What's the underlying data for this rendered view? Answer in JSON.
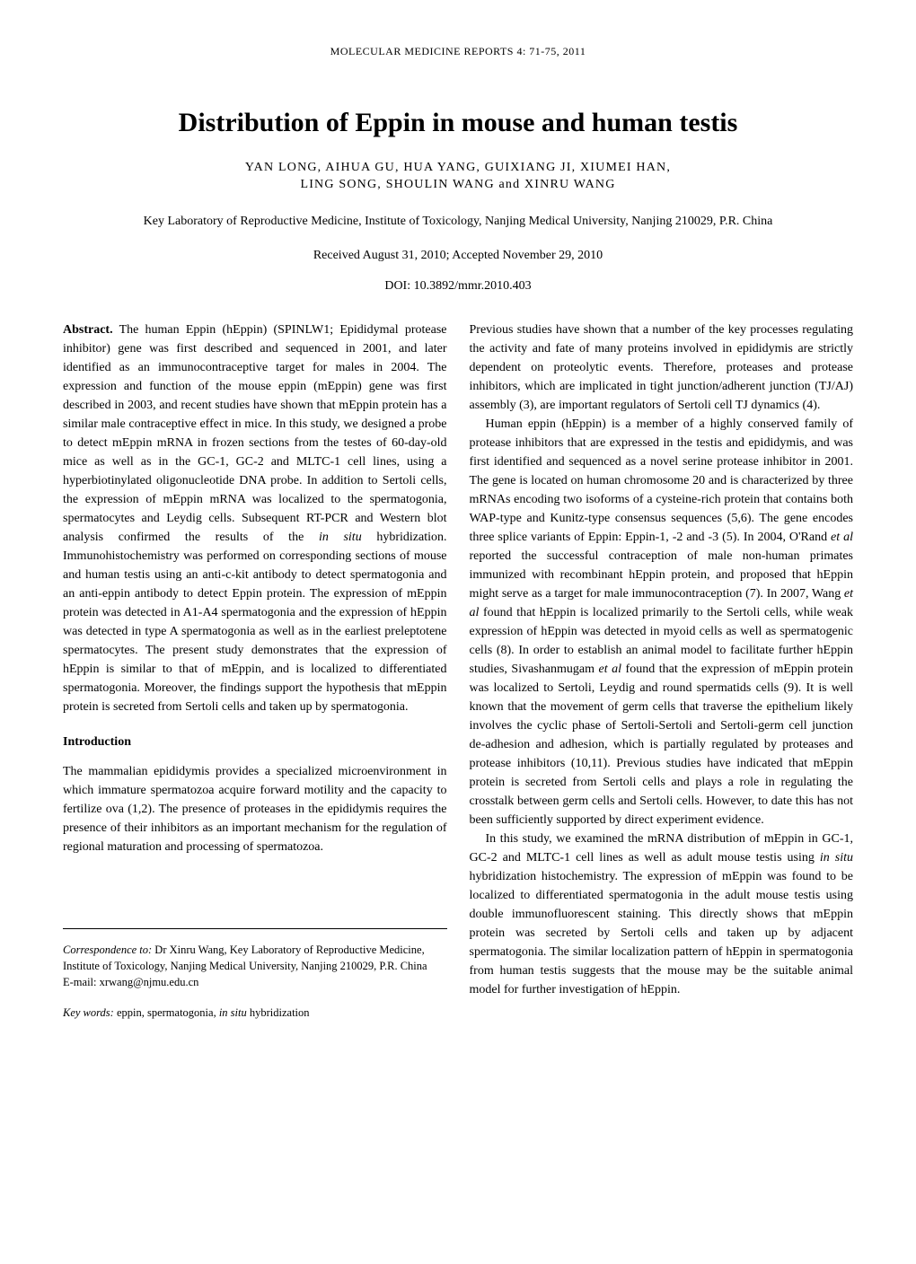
{
  "journal_header": "MOLECULAR MEDICINE REPORTS 4: 71-75, 2011",
  "title": "Distribution of Eppin in mouse and human testis",
  "authors_line1": "YAN LONG,  AIHUA GU,  HUA YANG,  GUIXIANG JI,  XIUMEI HAN,",
  "authors_line2": "LING SONG,  SHOULIN WANG  and  XINRU WANG",
  "affiliation": "Key Laboratory of Reproductive Medicine, Institute of Toxicology, Nanjing Medical University, Nanjing 210029, P.R. China",
  "dates": "Received August 31, 2010;  Accepted November 29, 2010",
  "doi": "DOI: 10.3892/mmr.2010.403",
  "abstract_label": "Abstract.",
  "abstract_text": " The human Eppin (hEppin) (SPINLW1; Epididymal protease inhibitor) gene was first described and sequenced in 2001, and later identified as an immunocontraceptive target for males in 2004. The expression and function of the mouse eppin (mEppin) gene was first described in 2003, and recent studies have shown that mEppin protein has a similar male contraceptive effect in mice. In this study, we designed a probe to detect mEppin mRNA in frozen sections from the testes of 60-day-old mice as well as in the GC-1, GC-2 and MLTC-1 cell lines, using a hyperbiotinylated oligonucleotide DNA probe. In addition to Sertoli cells, the expression of mEppin mRNA was localized to the spermatogonia, spermatocytes and Leydig cells. Subsequent RT-PCR and Western blot analysis confirmed the results of the ",
  "abstract_italic1": "in situ",
  "abstract_text2": " hybridization. Immunohistochemistry was performed on corresponding sections of mouse and human testis using an anti-c-kit antibody to detect spermatogonia and an anti-eppin antibody to detect Eppin protein. The expression of mEppin protein was detected in A1-A4 spermatogonia and the expression of hEppin was detected in type A spermatogonia as well as in the earliest preleptotene spermatocytes. The present study demonstrates that the expression of hEppin is similar to that of mEppin, and is localized to differentiated spermatogonia. Moreover, the findings support the hypothesis that mEppin protein is secreted from Sertoli cells and taken up by spermatogonia.",
  "intro_heading": "Introduction",
  "intro_p1": "The mammalian epididymis provides a specialized microenvironment in which immature spermatozoa acquire forward motility and the capacity to fertilize ova (1,2). The presence of proteases in the epididymis requires the presence of their inhibitors as an important mechanism for the regulation of regional maturation and processing of spermatozoa.",
  "correspondence_label": "Correspondence to:",
  "correspondence_text": " Dr Xinru Wang, Key Laboratory of Reproductive Medicine, Institute of Toxicology, Nanjing Medical University, Nanjing 210029, P.R. China",
  "email": "E-mail: xrwang@njmu.edu.cn",
  "keywords_label": "Key words:",
  "keywords_text": " eppin, spermatogonia, ",
  "keywords_italic": "in situ",
  "keywords_text2": " hybridization",
  "col2_p1": "Previous studies have shown that a number of the key processes regulating the activity and fate of many proteins involved in epididymis are strictly dependent on proteolytic events. Therefore, proteases and protease inhibitors, which are implicated in tight junction/adherent junction (TJ/AJ) assembly (3), are important regulators of Sertoli cell TJ dynamics (4).",
  "col2_p2a": "Human eppin (hEppin) is a member of a highly conserved family of protease inhibitors that are expressed in the testis and epididymis, and was first identified and sequenced as a novel serine protease inhibitor in 2001. The gene is located on human chromosome 20 and is characterized by three mRNAs encoding two isoforms of a cysteine-rich protein that contains both WAP-type and Kunitz-type consensus sequences (5,6). The gene encodes three splice variants of Eppin: Eppin-1, -2 and -3 (5). In 2004, O'Rand ",
  "col2_p2_italic1": "et al",
  "col2_p2b": " reported the successful contraception of male non-human primates immunized with recombinant hEppin protein, and proposed that hEppin might serve as a target for male immunocontraception (7). In 2007, Wang ",
  "col2_p2_italic2": "et al",
  "col2_p2c": " found that hEppin is localized primarily to the Sertoli cells, while weak expression of hEppin was detected in myoid cells as well as spermatogenic cells (8). In order to establish an animal model to facilitate further hEppin studies, Sivashanmugam ",
  "col2_p2_italic3": "et al",
  "col2_p2d": " found that the expression of mEppin protein was localized to Sertoli, Leydig and round spermatids cells (9). It is well known that the movement of germ cells that traverse the epithelium likely involves the cyclic phase of Sertoli-Sertoli and Sertoli-germ cell junction de-adhesion and adhesion, which is partially regulated by proteases and protease inhibitors (10,11). Previous studies have indicated that mEppin protein is secreted from Sertoli cells and plays a role in regulating the crosstalk between germ cells and Sertoli cells. However, to date this has not been sufficiently supported by direct experiment evidence.",
  "col2_p3a": "In this study, we examined the mRNA distribution of mEppin in GC-1, GC-2 and MLTC-1 cell lines as well as adult mouse testis using ",
  "col2_p3_italic1": "in situ",
  "col2_p3b": " hybridization histochemistry. The expression of mEppin was found to be localized to differentiated spermatogonia in the adult mouse testis using double immunofluorescent staining. This directly shows that mEppin protein was secreted by Sertoli cells and taken up by adjacent spermatogonia. The similar localization pattern of hEppin in spermatogonia from human testis suggests that the mouse may be the suitable animal model for further investigation of hEppin."
}
